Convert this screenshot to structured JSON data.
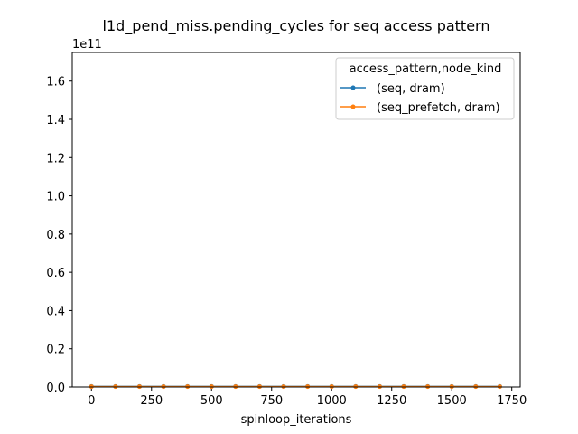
{
  "chart_data": {
    "type": "line",
    "title": "l1d_pend_miss.pending_cycles for seq access pattern",
    "xlabel": "spinloop_iterations",
    "ylabel": "",
    "y_offset_label": "1e11",
    "xlim": [
      -80,
      1785
    ],
    "ylim": [
      0,
      1.75
    ],
    "x_ticks": [
      0,
      250,
      500,
      750,
      1000,
      1250,
      1500,
      1750
    ],
    "y_ticks": [
      0.0,
      0.2,
      0.4,
      0.6,
      0.8,
      1.0,
      1.2,
      1.4,
      1.6
    ],
    "y_tick_labels": [
      "0.0",
      "0.2",
      "0.4",
      "0.6",
      "0.8",
      "1.0",
      "1.2",
      "1.4",
      "1.6"
    ],
    "grid": false,
    "legend_title": "access_pattern,node_kind",
    "legend_position": "top-right",
    "x": [
      0,
      100,
      200,
      300,
      400,
      500,
      600,
      700,
      800,
      900,
      1000,
      1100,
      1200,
      1300,
      1400,
      1500,
      1600,
      1700
    ],
    "series": [
      {
        "name": "(seq, dram)",
        "color": "#1f77b4",
        "values": [
          0.003,
          0.003,
          0.003,
          0.003,
          0.003,
          0.003,
          0.003,
          0.003,
          0.003,
          0.003,
          0.003,
          0.003,
          0.003,
          0.003,
          0.003,
          0.003,
          0.003,
          0.003
        ]
      },
      {
        "name": "(seq_prefetch, dram)",
        "color": "#ff7f0e",
        "values": [
          0.002,
          0.002,
          0.002,
          0.002,
          0.002,
          0.002,
          0.002,
          0.002,
          0.002,
          0.002,
          0.002,
          0.002,
          0.002,
          0.002,
          0.002,
          0.002,
          0.002,
          0.002
        ]
      }
    ]
  }
}
